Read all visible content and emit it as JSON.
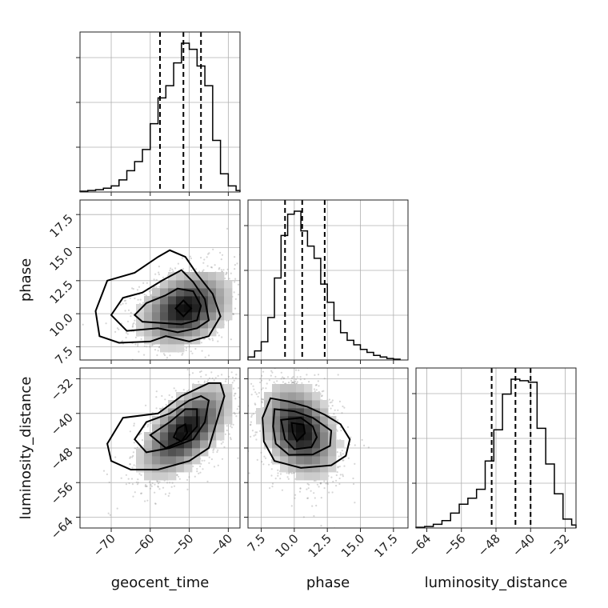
{
  "chart_data": {
    "type": "corner",
    "parameters": [
      "geocent_time",
      "phase",
      "luminosity_distance"
    ],
    "ranges": {
      "geocent_time": [
        -78,
        -37
      ],
      "phase": [
        6.5,
        18.6
      ],
      "luminosity_distance": [
        -66.5,
        -29.5
      ]
    },
    "ticks": {
      "geocent_time": [
        -70,
        -60,
        -50,
        -40
      ],
      "phase": [
        7.5,
        10.0,
        12.5,
        15.0,
        17.5
      ],
      "luminosity_distance": [
        -64,
        -56,
        -48,
        -40,
        -32
      ]
    },
    "tick_labels": {
      "geocent_time": [
        "−70",
        "−60",
        "−50",
        "−40"
      ],
      "phase": [
        "7.5",
        "10.0",
        "12.5",
        "15.0",
        "17.5"
      ],
      "luminosity_distance": [
        "−64",
        "−56",
        "−48",
        "−40",
        "−32"
      ]
    },
    "axis_labels": {
      "geocent_time": "geocent_time",
      "phase": "phase",
      "luminosity_distance": "luminosity_distance"
    },
    "quantiles": {
      "geocent_time": [
        -57.5,
        -51.5,
        -47.0
      ],
      "phase": [
        9.3,
        10.6,
        12.3
      ],
      "luminosity_distance": [
        -49.0,
        -43.5,
        -40.0
      ]
    },
    "marginals": {
      "geocent_time": {
        "edges": [
          -78,
          -76,
          -74,
          -72,
          -70,
          -68,
          -66,
          -64,
          -62,
          -60,
          -58,
          -56,
          -54,
          -52,
          -50,
          -48,
          -46,
          -44,
          -42,
          -40,
          -38,
          -37
        ],
        "counts": [
          0.5,
          1,
          1.5,
          2.5,
          4,
          8,
          14,
          20,
          28,
          45,
          62,
          70,
          85,
          98,
          94,
          83,
          70,
          34,
          12,
          4,
          1
        ]
      },
      "phase": {
        "edges": [
          6.5,
          7.0,
          7.5,
          8.0,
          8.5,
          9.0,
          9.5,
          10.0,
          10.5,
          11.0,
          11.5,
          12.0,
          12.5,
          13.0,
          13.5,
          14.0,
          14.5,
          15.0,
          15.5,
          16.0,
          16.5,
          17.0,
          17.5,
          18.0
        ],
        "counts": [
          2,
          6,
          12,
          28,
          54,
          82,
          96,
          98,
          85,
          75,
          67,
          50,
          38,
          26,
          18,
          13,
          10,
          7,
          5,
          3,
          2,
          1,
          0.5
        ]
      },
      "luminosity_distance": {
        "edges": [
          -66.5,
          -64.5,
          -62.5,
          -60.5,
          -58.5,
          -56.5,
          -54.5,
          -52.5,
          -50.5,
          -48.5,
          -46.5,
          -44.5,
          -42.5,
          -40.5,
          -38.5,
          -36.5,
          -34.5,
          -32.5,
          -30.5,
          -29.5
        ],
        "counts": [
          0.5,
          1,
          2.5,
          5,
          10,
          16,
          20,
          26,
          45,
          66,
          90,
          100,
          99,
          98,
          67,
          43,
          23,
          6,
          2
        ]
      }
    },
    "joint": [
      {
        "x": "geocent_time",
        "y": "phase",
        "center": [
          -51,
          10.4
        ],
        "sigma": [
          6.5,
          1.6
        ],
        "rho": 0.3,
        "contours": [
          [
            [
              -74,
              10.2
            ],
            [
              -71,
              12.5
            ],
            [
              -64,
              13.1
            ],
            [
              -58,
              14.3
            ],
            [
              -55,
              14.8
            ],
            [
              -51,
              14.3
            ],
            [
              -48,
              13
            ],
            [
              -44,
              11.5
            ],
            [
              -42,
              9.8
            ],
            [
              -45,
              8.3
            ],
            [
              -50,
              7.9
            ],
            [
              -56,
              8.3
            ],
            [
              -60,
              7.9
            ],
            [
              -68,
              7.8
            ],
            [
              -73,
              8.3
            ],
            [
              -74,
              10.2
            ]
          ],
          [
            [
              -70,
              9.9
            ],
            [
              -67,
              11.2
            ],
            [
              -62,
              11.6
            ],
            [
              -57,
              12.5
            ],
            [
              -52,
              13.3
            ],
            [
              -49,
              12.4
            ],
            [
              -46,
              11.1
            ],
            [
              -45,
              9.5
            ],
            [
              -48,
              8.9
            ],
            [
              -53,
              8.6
            ],
            [
              -58,
              8.9
            ],
            [
              -66,
              8.7
            ],
            [
              -70,
              9.9
            ]
          ],
          [
            [
              -64,
              9.9
            ],
            [
              -61,
              10.8
            ],
            [
              -56,
              11.4
            ],
            [
              -53,
              11.9
            ],
            [
              -49,
              11.7
            ],
            [
              -47,
              10.6
            ],
            [
              -48,
              9.5
            ],
            [
              -52,
              9.2
            ],
            [
              -57,
              9.3
            ],
            [
              -62,
              9.4
            ],
            [
              -64,
              9.9
            ]
          ],
          [
            [
              -53.5,
              10.4
            ],
            [
              -51.5,
              11
            ],
            [
              -49.5,
              10.4
            ],
            [
              -51.5,
              9.8
            ],
            [
              -53.5,
              10.4
            ]
          ]
        ]
      },
      {
        "x": "geocent_time",
        "y": "luminosity_distance",
        "center": [
          -51,
          -44
        ],
        "sigma": [
          6.5,
          6.0
        ],
        "rho": 0.6,
        "contours": [
          [
            [
              -71,
              -47
            ],
            [
              -67,
              -41
            ],
            [
              -58,
              -40
            ],
            [
              -52,
              -36
            ],
            [
              -45,
              -33
            ],
            [
              -42,
              -33
            ],
            [
              -41,
              -36
            ],
            [
              -43,
              -42
            ],
            [
              -45,
              -48
            ],
            [
              -50,
              -51
            ],
            [
              -58,
              -53
            ],
            [
              -65,
              -53
            ],
            [
              -70,
              -51
            ],
            [
              -71,
              -47
            ]
          ],
          [
            [
              -64,
              -46
            ],
            [
              -61,
              -42
            ],
            [
              -55,
              -40
            ],
            [
              -50,
              -37
            ],
            [
              -47,
              -36
            ],
            [
              -45,
              -37
            ],
            [
              -46,
              -42
            ],
            [
              -49,
              -46
            ],
            [
              -55,
              -48
            ],
            [
              -61,
              -49
            ],
            [
              -64,
              -46
            ]
          ],
          [
            [
              -60,
              -45
            ],
            [
              -55,
              -42
            ],
            [
              -51,
              -39
            ],
            [
              -48,
              -39
            ],
            [
              -48,
              -43
            ],
            [
              -51,
              -46
            ],
            [
              -56,
              -48
            ],
            [
              -60,
              -45
            ]
          ],
          [
            [
              -54,
              -45.5
            ],
            [
              -53,
              -43.5
            ],
            [
              -51,
              -42.5
            ],
            [
              -50.5,
              -44.5
            ],
            [
              -52,
              -46.5
            ],
            [
              -54,
              -45.5
            ]
          ]
        ]
      },
      {
        "x": "phase",
        "y": "luminosity_distance",
        "center": [
          10.4,
          -44
        ],
        "sigma": [
          1.6,
          6.0
        ],
        "rho": -0.3,
        "contours": [
          [
            [
              8.2,
              -36.5
            ],
            [
              9.5,
              -37.2
            ],
            [
              11,
              -38.5
            ],
            [
              12.3,
              -40.3
            ],
            [
              13.5,
              -42.5
            ],
            [
              14.2,
              -46
            ],
            [
              13.9,
              -49.8
            ],
            [
              12.8,
              -52
            ],
            [
              10.5,
              -52.6
            ],
            [
              8.5,
              -51
            ],
            [
              7.7,
              -46.5
            ],
            [
              7.6,
              -41
            ],
            [
              8.2,
              -36.5
            ]
          ],
          [
            [
              8.5,
              -39
            ],
            [
              10,
              -39.5
            ],
            [
              11.4,
              -41
            ],
            [
              12.8,
              -44
            ],
            [
              12.7,
              -47.5
            ],
            [
              11.4,
              -49.5
            ],
            [
              9.6,
              -49.6
            ],
            [
              8.6,
              -47
            ],
            [
              8.4,
              -43
            ],
            [
              8.5,
              -39
            ]
          ],
          [
            [
              9,
              -41.5
            ],
            [
              10.5,
              -41
            ],
            [
              11.4,
              -43
            ],
            [
              11.7,
              -45.5
            ],
            [
              11.3,
              -47.8
            ],
            [
              10,
              -48.3
            ],
            [
              9.3,
              -46
            ],
            [
              9,
              -41.5
            ]
          ],
          [
            [
              9.8,
              -42.2
            ],
            [
              10.7,
              -42.6
            ],
            [
              10.8,
              -44.6
            ],
            [
              10.2,
              -46.4
            ],
            [
              9.9,
              -44.5
            ],
            [
              9.8,
              -42.2
            ]
          ]
        ]
      }
    ]
  }
}
